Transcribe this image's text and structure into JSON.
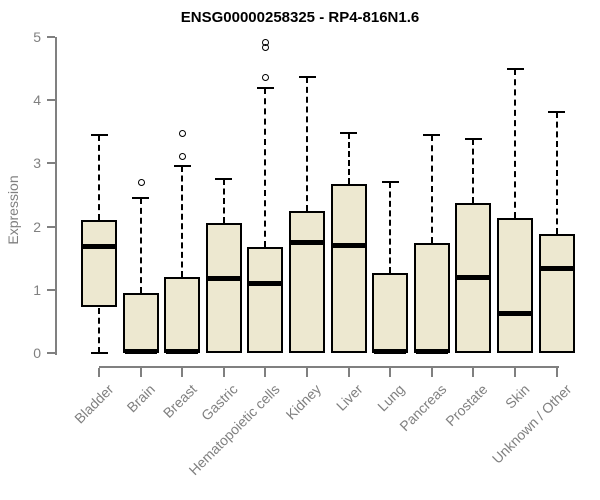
{
  "chart": {
    "title": "ENSG00000258325 - RP4-816N1.6",
    "ylabel": "Expression"
  },
  "colors": {
    "box_fill": "#EDE8D0",
    "box_border": "#000000",
    "median": "#000000",
    "whisker": "#000000",
    "outlier": "#000000",
    "axis": "#808080",
    "tick_label": "#808080",
    "title": "#000000",
    "background": "#FFFFFF"
  },
  "chart_data": {
    "type": "boxplot",
    "title": "ENSG00000258325 - RP4-816N1.6",
    "xlabel": "",
    "ylabel": "Expression",
    "ylim": [
      0,
      5
    ],
    "y_ticks": [
      0,
      1,
      2,
      3,
      4,
      5
    ],
    "grid": false,
    "legend": false,
    "categories": [
      "Bladder",
      "Brain",
      "Breast",
      "Gastric",
      "Hematopoietic cells",
      "Kidney",
      "Liver",
      "Lung",
      "Pancreas",
      "Prostate",
      "Skin",
      "Unknown / Other"
    ],
    "boxes": [
      {
        "label": "Bladder",
        "low": 0,
        "q1": 0.72,
        "median": 1.68,
        "q3": 2.1,
        "high": 3.45,
        "outliers": []
      },
      {
        "label": "Brain",
        "low": 0,
        "q1": 0,
        "median": 0.03,
        "q3": 0.95,
        "high": 2.45,
        "outliers": [
          2.7
        ]
      },
      {
        "label": "Breast",
        "low": 0,
        "q1": 0,
        "median": 0.03,
        "q3": 1.2,
        "high": 2.96,
        "outliers": [
          3.12,
          3.48
        ]
      },
      {
        "label": "Gastric",
        "low": 0,
        "q1": 0,
        "median": 1.18,
        "q3": 2.06,
        "high": 2.75,
        "outliers": []
      },
      {
        "label": "Hematopoietic cells",
        "low": 0,
        "q1": 0,
        "median": 1.1,
        "q3": 1.68,
        "high": 4.2,
        "outliers": [
          4.36,
          4.85,
          4.92
        ]
      },
      {
        "label": "Kidney",
        "low": 0,
        "q1": 0,
        "median": 1.75,
        "q3": 2.24,
        "high": 4.37,
        "outliers": []
      },
      {
        "label": "Liver",
        "low": 0,
        "q1": 0,
        "median": 1.7,
        "q3": 2.68,
        "high": 3.48,
        "outliers": []
      },
      {
        "label": "Lung",
        "low": 0,
        "q1": 0,
        "median": 0.03,
        "q3": 1.26,
        "high": 2.71,
        "outliers": []
      },
      {
        "label": "Pancreas",
        "low": 0,
        "q1": 0,
        "median": 0.03,
        "q3": 1.74,
        "high": 3.45,
        "outliers": []
      },
      {
        "label": "Prostate",
        "low": 0,
        "q1": 0,
        "median": 1.2,
        "q3": 2.37,
        "high": 3.38,
        "outliers": []
      },
      {
        "label": "Skin",
        "low": 0,
        "q1": 0,
        "median": 0.63,
        "q3": 2.13,
        "high": 4.49,
        "outliers": []
      },
      {
        "label": "Unknown / Other",
        "low": 0,
        "q1": 0,
        "median": 1.34,
        "q3": 1.88,
        "high": 3.82,
        "outliers": []
      }
    ]
  }
}
